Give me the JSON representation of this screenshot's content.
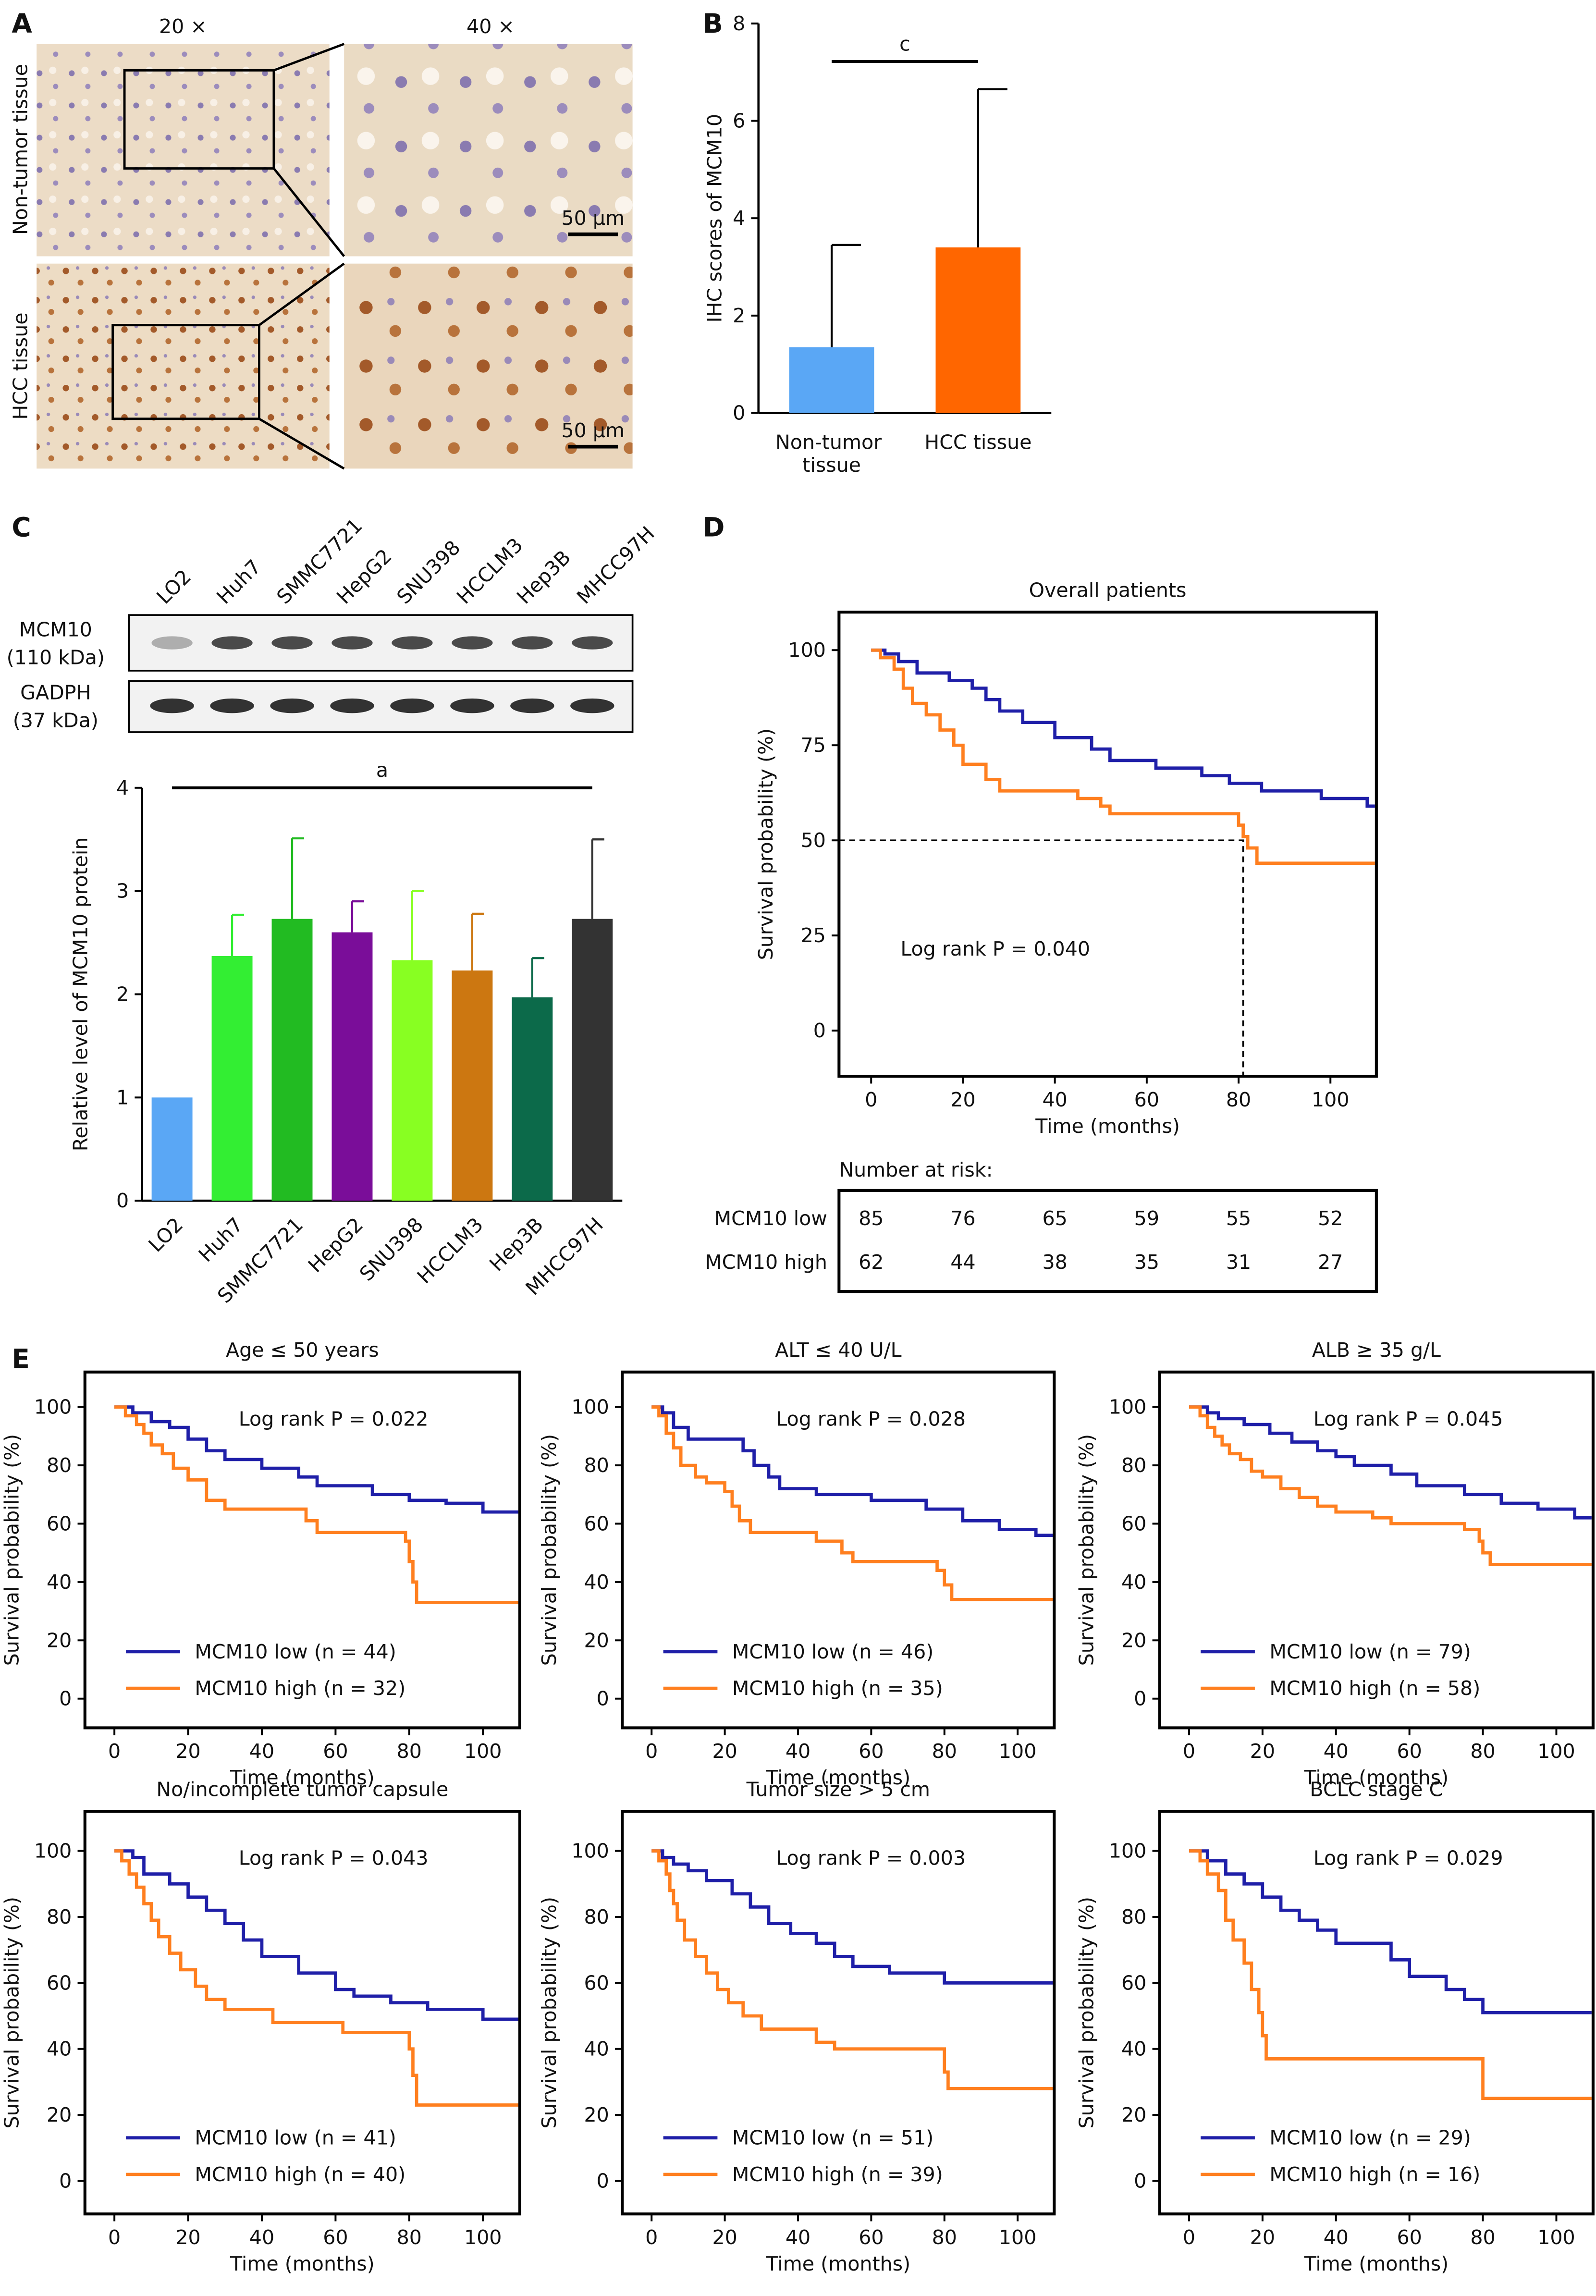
{
  "panel_labels": [
    "A",
    "B",
    "C",
    "D",
    "E"
  ],
  "histology": {
    "magnifications": [
      "20 ×",
      "40 ×"
    ],
    "rows": [
      "Non-tumor tissue",
      "HCC tissue"
    ],
    "scale_bar": "50 μm"
  },
  "western_blot": {
    "lanes": [
      "LO2",
      "Huh7",
      "SMMC7721",
      "HepG2",
      "SNU398",
      "HCCLM3",
      "Hep3B",
      "MHCC97H"
    ],
    "bands": [
      {
        "label": "MCM10",
        "sublabel": "(110 kDa)"
      },
      {
        "label": "GADPH",
        "sublabel": "(37 kDa)"
      }
    ]
  },
  "chart_data": [
    {
      "type": "bar",
      "ylabel": "IHC scores of MCM10",
      "categories": [
        "Non-tumor tissue",
        "HCC tissue"
      ],
      "values": [
        1.35,
        3.4
      ],
      "errors": [
        2.1,
        3.25
      ],
      "colors": [
        "#5aa7f5",
        "#ff6600"
      ],
      "errorbar_color": "#000000",
      "ylim": [
        0,
        8
      ],
      "yticks": [
        0,
        2,
        4,
        6,
        8
      ],
      "significance": "c"
    },
    {
      "type": "bar",
      "ylabel": "Relative level of MCM10 protein",
      "categories": [
        "LO2",
        "Huh7",
        "SMMC7721",
        "HepG2",
        "SNU398",
        "HCCLM3",
        "Hep3B",
        "MHCC97H"
      ],
      "values": [
        1,
        2.37,
        2.73,
        2.6,
        2.33,
        2.23,
        1.97,
        2.73
      ],
      "errors": [
        null,
        0.4,
        0.78,
        0.3,
        0.67,
        0.55,
        0.38,
        0.77
      ],
      "colors": [
        "#5aa7f5",
        "#33ee33",
        "#22bb22",
        "#7a0d99",
        "#88ff22",
        "#cc7711",
        "#0c6a4a",
        "#333333"
      ],
      "ylim": [
        0,
        4
      ],
      "yticks": [
        0,
        1,
        2,
        3,
        4
      ],
      "rotate_labels": true,
      "significance": "a"
    },
    {
      "type": "line",
      "drawstyle": "steps-post",
      "title": "Overall patients",
      "xlabel": "Time (months)",
      "ylabel": "Survival probability (%)",
      "annotation": "Log rank P = 0.040",
      "xlim": [
        -7,
        110
      ],
      "ylim": [
        -12,
        110
      ],
      "xticks": [
        0,
        20,
        40,
        60,
        80,
        100
      ],
      "yticks": [
        0,
        25,
        50,
        75,
        100
      ],
      "reference": {
        "x": 81,
        "y": 50
      },
      "risk_table_title": "Number at risk:",
      "series": [
        {
          "name": "MCM10 low",
          "color": "#1f1fa8",
          "x": [
            0,
            3,
            6,
            10,
            17,
            22,
            25,
            28,
            33,
            40,
            48,
            52,
            62,
            72,
            78,
            85,
            98,
            108
          ],
          "values": [
            100,
            99,
            97,
            94,
            92,
            90,
            87,
            84,
            81,
            77,
            74,
            71,
            69,
            67,
            65,
            63,
            61,
            59
          ],
          "at_risk": [
            85,
            76,
            65,
            59,
            55,
            52
          ]
        },
        {
          "name": "MCM10 high",
          "color": "#ff7f1f",
          "x": [
            0,
            2,
            5,
            7,
            9,
            12,
            15,
            18,
            20,
            25,
            28,
            45,
            50,
            52,
            80,
            81,
            82,
            84
          ],
          "values": [
            100,
            98,
            95,
            90,
            86,
            83,
            79,
            75,
            70,
            66,
            63,
            61,
            59,
            57,
            54,
            51,
            48,
            44
          ],
          "at_risk": [
            62,
            44,
            38,
            35,
            31,
            27
          ]
        }
      ]
    },
    {
      "type": "line",
      "drawstyle": "steps-post",
      "title": "Age ≤ 50 years",
      "xlabel": "Time (months)",
      "ylabel": "Survival probability (%)",
      "annotation": "Log rank P = 0.022",
      "xlim": [
        -8,
        110
      ],
      "ylim": [
        -10,
        112
      ],
      "xticks": [
        0,
        20,
        40,
        60,
        80,
        100
      ],
      "yticks": [
        0,
        20,
        40,
        60,
        80,
        100
      ],
      "series": [
        {
          "name": "MCM10 low (n = 44)",
          "color": "#1f1fa8",
          "x": [
            0,
            5,
            10,
            15,
            20,
            25,
            30,
            40,
            50,
            55,
            70,
            80,
            90,
            100
          ],
          "values": [
            100,
            98,
            95,
            93,
            89,
            85,
            82,
            79,
            76,
            73,
            70,
            68,
            67,
            64
          ]
        },
        {
          "name": "MCM10 high (n = 32)",
          "color": "#ff7f1f",
          "x": [
            0,
            3,
            6,
            8,
            10,
            13,
            16,
            20,
            25,
            30,
            52,
            55,
            79,
            80,
            81,
            82
          ],
          "values": [
            100,
            97,
            94,
            91,
            87,
            84,
            79,
            75,
            68,
            65,
            61,
            57,
            54,
            47,
            40,
            33
          ]
        }
      ]
    },
    {
      "type": "line",
      "drawstyle": "steps-post",
      "title": "ALT ≤ 40 U/L",
      "xlabel": "Time (months)",
      "ylabel": "Survival probability (%)",
      "annotation": "Log rank P = 0.028",
      "xlim": [
        -8,
        110
      ],
      "ylim": [
        -10,
        112
      ],
      "xticks": [
        0,
        20,
        40,
        60,
        80,
        100
      ],
      "yticks": [
        0,
        20,
        40,
        60,
        80,
        100
      ],
      "series": [
        {
          "name": "MCM10 low (n = 46)",
          "color": "#1f1fa8",
          "x": [
            0,
            3,
            6,
            10,
            25,
            28,
            32,
            35,
            45,
            60,
            75,
            85,
            95,
            105
          ],
          "values": [
            100,
            98,
            93,
            89,
            85,
            80,
            76,
            72,
            70,
            68,
            65,
            61,
            58,
            56
          ]
        },
        {
          "name": "MCM10 high (n = 35)",
          "color": "#ff7f1f",
          "x": [
            0,
            2,
            4,
            6,
            8,
            12,
            15,
            20,
            22,
            24,
            27,
            45,
            52,
            55,
            78,
            80,
            82
          ],
          "values": [
            100,
            97,
            91,
            86,
            80,
            76,
            74,
            71,
            66,
            61,
            57,
            54,
            50,
            47,
            44,
            39,
            34
          ]
        }
      ]
    },
    {
      "type": "line",
      "drawstyle": "steps-post",
      "title": "ALB ≥ 35 g/L",
      "xlabel": "Time (months)",
      "ylabel": "Survival probability (%)",
      "annotation": "Log rank P = 0.045",
      "xlim": [
        -8,
        110
      ],
      "ylim": [
        -10,
        112
      ],
      "xticks": [
        0,
        20,
        40,
        60,
        80,
        100
      ],
      "yticks": [
        0,
        20,
        40,
        60,
        80,
        100
      ],
      "series": [
        {
          "name": "MCM10 low (n = 79)",
          "color": "#1f1fa8",
          "x": [
            0,
            5,
            8,
            15,
            22,
            28,
            35,
            40,
            45,
            55,
            62,
            75,
            85,
            95,
            105
          ],
          "values": [
            100,
            98,
            96,
            94,
            91,
            88,
            85,
            83,
            80,
            77,
            73,
            70,
            67,
            65,
            62
          ]
        },
        {
          "name": "MCM10 high (n = 58)",
          "color": "#ff7f1f",
          "x": [
            0,
            3,
            5,
            7,
            9,
            11,
            14,
            17,
            20,
            25,
            30,
            35,
            40,
            50,
            55,
            75,
            79,
            80,
            82
          ],
          "values": [
            100,
            97,
            93,
            90,
            87,
            84,
            82,
            78,
            76,
            72,
            69,
            66,
            64,
            62,
            60,
            58,
            54,
            50,
            46
          ]
        }
      ]
    },
    {
      "type": "line",
      "drawstyle": "steps-post",
      "title": "No/incomplete tumor capsule",
      "xlabel": "Time (months)",
      "ylabel": "Survival probability (%)",
      "annotation": "Log rank P = 0.043",
      "xlim": [
        -8,
        110
      ],
      "ylim": [
        -10,
        112
      ],
      "xticks": [
        0,
        20,
        40,
        60,
        80,
        100
      ],
      "yticks": [
        0,
        20,
        40,
        60,
        80,
        100
      ],
      "series": [
        {
          "name": "MCM10 low (n = 41)",
          "color": "#1f1fa8",
          "x": [
            0,
            5,
            8,
            15,
            20,
            25,
            30,
            35,
            40,
            50,
            60,
            65,
            75,
            85,
            100
          ],
          "values": [
            100,
            98,
            93,
            90,
            86,
            82,
            78,
            73,
            68,
            63,
            58,
            56,
            54,
            52,
            49
          ]
        },
        {
          "name": "MCM10 high (n = 40)",
          "color": "#ff7f1f",
          "x": [
            0,
            2,
            4,
            6,
            8,
            10,
            12,
            15,
            18,
            22,
            25,
            30,
            43,
            62,
            80,
            81,
            82
          ],
          "values": [
            100,
            97,
            93,
            89,
            84,
            79,
            74,
            69,
            64,
            59,
            55,
            52,
            48,
            45,
            40,
            32,
            23
          ]
        }
      ]
    },
    {
      "type": "line",
      "drawstyle": "steps-post",
      "title": "Tumor size > 5 cm",
      "xlabel": "Time (months)",
      "ylabel": "Survival probability (%)",
      "annotation": "Log rank P = 0.003",
      "xlim": [
        -8,
        110
      ],
      "ylim": [
        -10,
        112
      ],
      "xticks": [
        0,
        20,
        40,
        60,
        80,
        100
      ],
      "yticks": [
        0,
        20,
        40,
        60,
        80,
        100
      ],
      "series": [
        {
          "name": "MCM10 low (n = 51)",
          "color": "#1f1fa8",
          "x": [
            0,
            3,
            6,
            10,
            15,
            22,
            27,
            32,
            38,
            45,
            50,
            55,
            65,
            80
          ],
          "values": [
            100,
            98,
            96,
            94,
            91,
            87,
            83,
            78,
            75,
            72,
            68,
            65,
            63,
            60
          ]
        },
        {
          "name": "MCM10 high (n = 39)",
          "color": "#ff7f1f",
          "x": [
            0,
            2,
            4,
            5,
            6,
            7,
            9,
            12,
            15,
            18,
            21,
            25,
            30,
            45,
            50,
            80,
            81
          ],
          "values": [
            100,
            97,
            93,
            88,
            84,
            79,
            73,
            68,
            63,
            58,
            54,
            50,
            46,
            42,
            40,
            33,
            28
          ]
        }
      ]
    },
    {
      "type": "line",
      "drawstyle": "steps-post",
      "title": "BCLC stage C",
      "xlabel": "Time (months)",
      "ylabel": "Survival probability (%)",
      "annotation": "Log rank P = 0.029",
      "xlim": [
        -8,
        110
      ],
      "ylim": [
        -10,
        112
      ],
      "xticks": [
        0,
        20,
        40,
        60,
        80,
        100
      ],
      "yticks": [
        0,
        20,
        40,
        60,
        80,
        100
      ],
      "series": [
        {
          "name": "MCM10 low (n = 29)",
          "color": "#1f1fa8",
          "x": [
            0,
            5,
            10,
            15,
            20,
            25,
            30,
            35,
            40,
            55,
            60,
            70,
            75,
            80
          ],
          "values": [
            100,
            97,
            93,
            90,
            86,
            82,
            79,
            76,
            72,
            67,
            62,
            58,
            55,
            51
          ]
        },
        {
          "name": "MCM10 high (n = 16)",
          "color": "#ff7f1f",
          "x": [
            0,
            3,
            5,
            8,
            10,
            12,
            15,
            17,
            19,
            20,
            21,
            80
          ],
          "values": [
            100,
            97,
            93,
            88,
            79,
            73,
            66,
            58,
            51,
            44,
            37,
            25
          ]
        }
      ]
    }
  ]
}
